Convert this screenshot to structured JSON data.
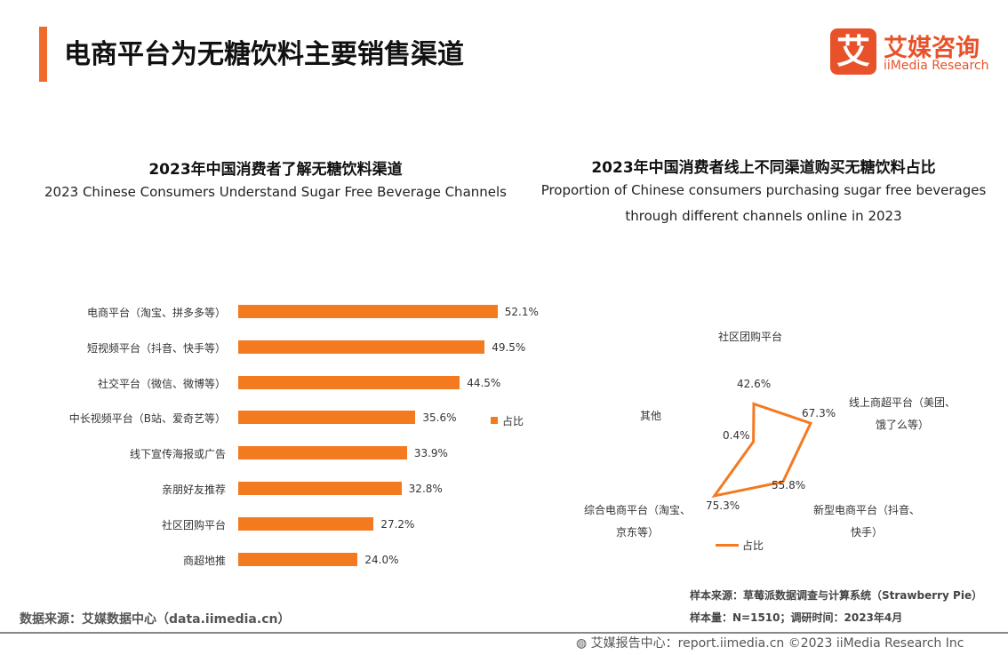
{
  "header": {
    "title": "电商平台为无糖饮料主要销售渠道",
    "logo_mark": "艾",
    "logo_cn": "艾媒咨询",
    "logo_en": "iiMedia Research",
    "accent": "#f06a2a"
  },
  "chart_data": [
    {
      "type": "bar",
      "orientation": "horizontal",
      "title": "2023年中国消费者了解无糖饮料渠道",
      "subtitle": "2023 Chinese Consumers Understand Sugar Free Beverage Channels",
      "categories": [
        "电商平台（淘宝、拼多多等）",
        "短视频平台（抖音、快手等）",
        "社交平台（微信、微博等）",
        "中长视频平台（B站、爱奇艺等）",
        "线下宣传海报或广告",
        "亲朋好友推荐",
        "社区团购平台",
        "商超地推"
      ],
      "values": [
        52.1,
        49.5,
        44.5,
        35.6,
        33.9,
        32.8,
        27.2,
        24.0
      ],
      "labels": [
        "52.1%",
        "49.5%",
        "44.5%",
        "35.6%",
        "33.9%",
        "32.8%",
        "27.2%",
        "24.0%"
      ],
      "series": [
        {
          "name": "占比",
          "values": [
            52.1,
            49.5,
            44.5,
            35.6,
            33.9,
            32.8,
            27.2,
            24.0
          ]
        }
      ],
      "color": "#f47a20",
      "legend": "right",
      "grid": false
    },
    {
      "type": "radar",
      "title": "2023年中国消费者线上不同渠道购买无糖饮料占比",
      "subtitle_lines": [
        "Proportion of Chinese consumers purchasing sugar free beverages",
        "through different channels online in 2023"
      ],
      "categories": [
        [
          "社区团购平台"
        ],
        [
          "线上商超平台（美团、",
          "饿了么等）"
        ],
        [
          "新型电商平台（抖音、",
          "快手）"
        ],
        [
          "综合电商平台（淘宝、",
          "京东等）"
        ],
        [
          "其他"
        ]
      ],
      "values": [
        42.6,
        67.3,
        55.8,
        75.3,
        0.4
      ],
      "labels": [
        "42.6%",
        "67.3%",
        "55.8%",
        "75.3%",
        "0.4%"
      ],
      "series": [
        {
          "name": "占比",
          "values": [
            42.6,
            67.3,
            55.8,
            75.3,
            0.4
          ]
        }
      ],
      "color": "#f47a20",
      "legend": "bottom",
      "grid": false
    }
  ],
  "footer": {
    "source": "数据来源：艾媒数据中心（data.iimedia.cn）",
    "sample_source": "样本来源：草莓派数据调查与计算系统（Strawberry Pie）",
    "sample_size": "样本量：N=1510；调研时间：2023年4月",
    "copyright": "艾媒报告中心：report.iimedia.cn   ©2023  iiMedia Research  Inc"
  }
}
